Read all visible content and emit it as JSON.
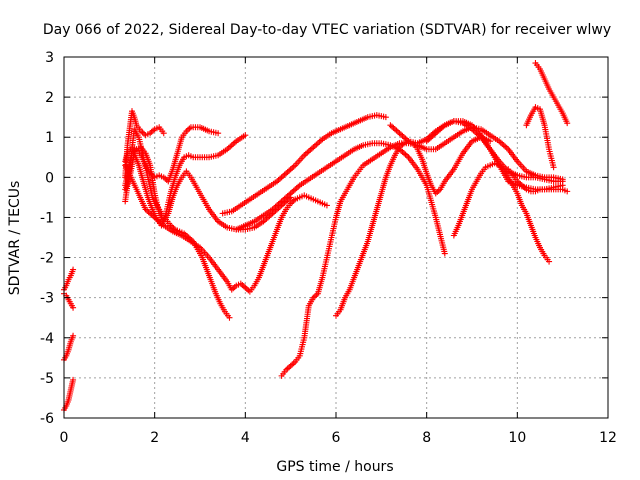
{
  "chart_data": {
    "type": "scatter",
    "title": "Day 066 of 2022, Sidereal Day-to-day VTEC variation (SDTVAR) for receiver wlwy",
    "xlabel": "GPS time / hours",
    "ylabel": "SDTVAR / TECUs",
    "xlim": [
      0,
      12
    ],
    "ylim": [
      -6,
      3
    ],
    "xticks": [
      "0",
      "2",
      "4",
      "6",
      "8",
      "10",
      "12"
    ],
    "yticks": [
      "-6",
      "-5",
      "-4",
      "-3",
      "-2",
      "-1",
      "0",
      "1",
      "2",
      "3"
    ],
    "xtick_values": [
      0,
      2,
      4,
      6,
      8,
      10,
      12
    ],
    "ytick_values": [
      -6,
      -5,
      -4,
      -3,
      -2,
      -1,
      0,
      1,
      2,
      3
    ],
    "grid": true,
    "marker": "+",
    "color": "#ff0000",
    "series": [
      {
        "name": "s1",
        "x": [
          0.0,
          0.05,
          0.1,
          0.15,
          0.2
        ],
        "y": [
          -2.8,
          -2.7,
          -2.55,
          -2.45,
          -2.3
        ]
      },
      {
        "name": "s2",
        "x": [
          0.0,
          0.05,
          0.1,
          0.15,
          0.2
        ],
        "y": [
          -2.9,
          -2.95,
          -3.05,
          -3.15,
          -3.25
        ]
      },
      {
        "name": "s3",
        "x": [
          0.0,
          0.05,
          0.1,
          0.15,
          0.2
        ],
        "y": [
          -4.55,
          -4.45,
          -4.3,
          -4.1,
          -3.95
        ]
      },
      {
        "name": "s4",
        "x": [
          0.0,
          0.05,
          0.1,
          0.15,
          0.2
        ],
        "y": [
          -5.8,
          -5.7,
          -5.55,
          -5.3,
          -5.05
        ]
      },
      {
        "name": "s5",
        "x": [
          1.35,
          1.4,
          1.5,
          1.55,
          1.6,
          1.7,
          1.8,
          1.9,
          2.0,
          2.1,
          2.2
        ],
        "y": [
          0.0,
          0.8,
          1.65,
          1.5,
          1.3,
          1.15,
          1.05,
          1.1,
          1.2,
          1.25,
          1.1
        ]
      },
      {
        "name": "s6",
        "x": [
          1.35,
          1.4,
          1.5,
          1.6,
          1.7,
          1.8,
          1.9,
          2.0,
          2.1,
          2.2,
          2.3,
          2.4,
          2.5,
          2.6,
          2.7,
          2.8,
          3.0,
          3.2,
          3.4
        ],
        "y": [
          0.4,
          0.6,
          0.75,
          0.7,
          0.55,
          0.3,
          0.1,
          0.0,
          0.05,
          0.0,
          -0.1,
          0.2,
          0.6,
          1.0,
          1.15,
          1.25,
          1.25,
          1.15,
          1.1
        ]
      },
      {
        "name": "s7",
        "x": [
          1.35,
          1.45,
          1.55,
          1.65,
          1.75,
          1.85,
          1.95,
          2.05,
          2.15,
          2.25,
          2.35,
          2.45,
          2.55,
          2.65,
          2.75,
          2.85,
          2.95,
          3.05,
          3.15,
          3.25,
          3.35,
          3.45,
          3.55,
          3.65
        ],
        "y": [
          -0.6,
          0.2,
          1.2,
          1.0,
          0.5,
          0.0,
          -0.5,
          -0.7,
          -0.9,
          -1.05,
          -1.2,
          -1.3,
          -1.35,
          -1.4,
          -1.5,
          -1.6,
          -1.8,
          -2.0,
          -2.3,
          -2.6,
          -2.9,
          -3.15,
          -3.35,
          -3.5
        ]
      },
      {
        "name": "s8",
        "x": [
          1.35,
          1.45,
          1.55,
          1.65,
          1.75,
          1.85,
          1.95,
          2.05,
          2.15,
          2.25,
          2.35,
          2.45,
          2.55,
          2.65,
          2.75,
          2.85,
          3.0,
          3.2,
          3.4,
          3.6,
          3.8,
          4.0
        ],
        "y": [
          -0.3,
          0.0,
          0.6,
          0.3,
          -0.1,
          -0.5,
          -0.8,
          -1.05,
          -1.2,
          -0.9,
          -0.4,
          0.0,
          0.3,
          0.5,
          0.55,
          0.5,
          0.5,
          0.5,
          0.55,
          0.7,
          0.9,
          1.05
        ]
      },
      {
        "name": "s9",
        "x": [
          1.35,
          1.5,
          1.6,
          1.7,
          1.8,
          1.9,
          2.0,
          2.1,
          2.2,
          2.3,
          2.4,
          2.5,
          2.6,
          2.7,
          2.8,
          2.9,
          3.0,
          3.2,
          3.4,
          3.6,
          3.8,
          4.0,
          4.2,
          4.4,
          4.6,
          4.8,
          5.0
        ],
        "y": [
          -0.2,
          0.6,
          0.7,
          0.75,
          0.6,
          0.3,
          -0.4,
          -0.9,
          -1.1,
          -0.9,
          -0.5,
          -0.2,
          0.0,
          0.15,
          0.0,
          -0.2,
          -0.4,
          -0.8,
          -1.1,
          -1.25,
          -1.3,
          -1.3,
          -1.25,
          -1.1,
          -0.9,
          -0.7,
          -0.5
        ]
      },
      {
        "name": "s10",
        "x": [
          1.35,
          1.6,
          1.8,
          2.0,
          2.2,
          2.4,
          2.6,
          2.8,
          3.0,
          3.2,
          3.4,
          3.6,
          3.7,
          3.8,
          3.9,
          4.0,
          4.1,
          4.2,
          4.3,
          4.4,
          4.5,
          4.6,
          4.7,
          4.8,
          4.9,
          5.0,
          5.1,
          5.2,
          5.3,
          5.4,
          5.5,
          5.6,
          5.7,
          5.8
        ],
        "y": [
          0.3,
          -0.3,
          -0.8,
          -1.0,
          -1.2,
          -1.35,
          -1.45,
          -1.6,
          -1.75,
          -2.0,
          -2.3,
          -2.6,
          -2.8,
          -2.7,
          -2.65,
          -2.75,
          -2.85,
          -2.7,
          -2.5,
          -2.2,
          -1.9,
          -1.6,
          -1.3,
          -1.0,
          -0.8,
          -0.65,
          -0.55,
          -0.5,
          -0.45,
          -0.5,
          -0.55,
          -0.6,
          -0.65,
          -0.7
        ]
      },
      {
        "name": "s11",
        "x": [
          3.5,
          3.7,
          3.9,
          4.1,
          4.3,
          4.5,
          4.7,
          4.9,
          5.1,
          5.3,
          5.5,
          5.7,
          5.9,
          6.1,
          6.3,
          6.5,
          6.7,
          6.9,
          7.1
        ],
        "y": [
          -0.9,
          -0.85,
          -0.7,
          -0.55,
          -0.4,
          -0.25,
          -0.1,
          0.1,
          0.3,
          0.55,
          0.75,
          0.95,
          1.1,
          1.2,
          1.3,
          1.4,
          1.5,
          1.55,
          1.5
        ]
      },
      {
        "name": "s12",
        "x": [
          3.8,
          4.0,
          4.2,
          4.4,
          4.6,
          4.8,
          5.0,
          5.2,
          5.4,
          5.6,
          5.8,
          6.0,
          6.2,
          6.4,
          6.6,
          6.8,
          7.0,
          7.2,
          7.4,
          7.6,
          7.8,
          8.0,
          8.2,
          8.4
        ],
        "y": [
          -1.3,
          -1.2,
          -1.1,
          -0.95,
          -0.8,
          -0.6,
          -0.4,
          -0.2,
          -0.05,
          0.1,
          0.25,
          0.4,
          0.55,
          0.7,
          0.8,
          0.85,
          0.85,
          0.8,
          0.7,
          0.5,
          0.2,
          -0.2,
          -1.0,
          -1.9
        ]
      },
      {
        "name": "s13",
        "x": [
          4.8,
          4.9,
          5.0,
          5.1,
          5.2,
          5.3,
          5.4,
          5.5,
          5.6,
          5.7,
          5.8,
          5.9,
          6.0,
          6.1,
          6.2,
          6.3,
          6.4,
          6.5,
          6.6,
          6.8,
          7.0,
          7.2,
          7.4,
          7.6,
          7.8,
          8.0,
          8.2,
          8.4,
          8.6,
          8.8,
          9.0,
          9.2,
          9.4,
          9.6,
          9.8,
          10.0,
          10.2,
          10.4,
          10.6,
          10.8,
          11.0
        ],
        "y": [
          -4.95,
          -4.8,
          -4.7,
          -4.6,
          -4.45,
          -4.0,
          -3.2,
          -3.0,
          -2.9,
          -2.5,
          -2.0,
          -1.5,
          -1.0,
          -0.6,
          -0.4,
          -0.2,
          0.0,
          0.15,
          0.3,
          0.45,
          0.6,
          0.75,
          0.85,
          0.85,
          0.8,
          0.7,
          0.7,
          0.85,
          1.0,
          1.15,
          1.25,
          1.2,
          1.05,
          0.9,
          0.7,
          0.4,
          0.15,
          0.05,
          0.0,
          0.0,
          -0.05
        ]
      },
      {
        "name": "s14",
        "x": [
          6.0,
          6.1,
          6.2,
          6.3,
          6.4,
          6.5,
          6.6,
          6.7,
          6.8,
          6.9,
          7.0,
          7.1,
          7.2,
          7.3,
          7.4,
          7.5,
          7.6,
          7.7,
          7.8,
          7.9,
          8.0,
          8.1,
          8.2,
          8.3,
          8.4,
          8.6,
          8.8,
          9.0,
          9.2,
          9.4
        ],
        "y": [
          -3.45,
          -3.3,
          -3.0,
          -2.8,
          -2.5,
          -2.2,
          -1.9,
          -1.6,
          -1.2,
          -0.8,
          -0.4,
          0.0,
          0.3,
          0.55,
          0.75,
          0.85,
          0.9,
          0.85,
          0.7,
          0.45,
          0.1,
          -0.2,
          -0.4,
          -0.3,
          -0.1,
          0.2,
          0.6,
          0.9,
          1.0,
          0.9
        ]
      },
      {
        "name": "s15",
        "x": [
          7.2,
          7.4,
          7.6,
          7.8,
          8.0,
          8.2,
          8.4,
          8.6,
          8.8,
          9.0,
          9.2,
          9.4,
          9.6,
          9.8,
          10.0,
          10.2,
          10.4,
          10.6,
          10.8,
          11.0
        ],
        "y": [
          1.3,
          1.1,
          0.9,
          0.85,
          0.95,
          1.15,
          1.3,
          1.4,
          1.4,
          1.3,
          1.05,
          0.7,
          0.3,
          -0.1,
          -0.2,
          -0.25,
          -0.3,
          -0.3,
          -0.25,
          -0.2
        ]
      },
      {
        "name": "s16",
        "x": [
          8.0,
          8.2,
          8.4,
          8.6,
          8.8,
          9.0,
          9.2,
          9.4,
          9.6,
          9.8,
          10.0,
          10.2,
          10.4,
          10.6,
          10.8,
          11.0
        ],
        "y": [
          0.9,
          1.1,
          1.3,
          1.4,
          1.35,
          1.2,
          1.0,
          0.7,
          0.4,
          0.15,
          0.05,
          0.0,
          0.0,
          -0.05,
          -0.1,
          -0.1
        ]
      },
      {
        "name": "s17",
        "x": [
          8.6,
          8.7,
          8.8,
          8.9,
          9.0,
          9.1,
          9.2,
          9.3,
          9.4,
          9.5,
          9.6,
          9.7,
          9.8,
          9.9,
          10.0,
          10.1,
          10.2,
          10.3,
          10.4,
          10.5,
          10.6,
          10.7
        ],
        "y": [
          -1.45,
          -1.2,
          -0.9,
          -0.6,
          -0.3,
          -0.1,
          0.1,
          0.25,
          0.3,
          0.35,
          0.3,
          0.2,
          0.0,
          -0.2,
          -0.4,
          -0.7,
          -0.9,
          -1.2,
          -1.5,
          -1.75,
          -1.95,
          -2.1
        ]
      },
      {
        "name": "s18",
        "x": [
          10.2,
          10.3,
          10.4,
          10.5,
          10.6,
          10.7,
          10.8
        ],
        "y": [
          1.3,
          1.55,
          1.75,
          1.7,
          1.3,
          0.7,
          0.25
        ]
      },
      {
        "name": "s19",
        "x": [
          10.4,
          10.5,
          10.6,
          10.7,
          10.8,
          10.9,
          11.0,
          11.1
        ],
        "y": [
          2.85,
          2.7,
          2.45,
          2.2,
          2.0,
          1.8,
          1.6,
          1.35
        ]
      },
      {
        "name": "s20",
        "x": [
          9.8,
          9.9,
          10.0,
          10.1,
          10.2,
          10.3,
          10.4,
          10.5,
          10.6,
          10.7,
          10.8,
          10.9,
          11.0,
          11.1
        ],
        "y": [
          0.2,
          0.05,
          -0.1,
          -0.2,
          -0.3,
          -0.35,
          -0.35,
          -0.3,
          -0.3,
          -0.3,
          -0.3,
          -0.3,
          -0.3,
          -0.35
        ]
      }
    ]
  }
}
